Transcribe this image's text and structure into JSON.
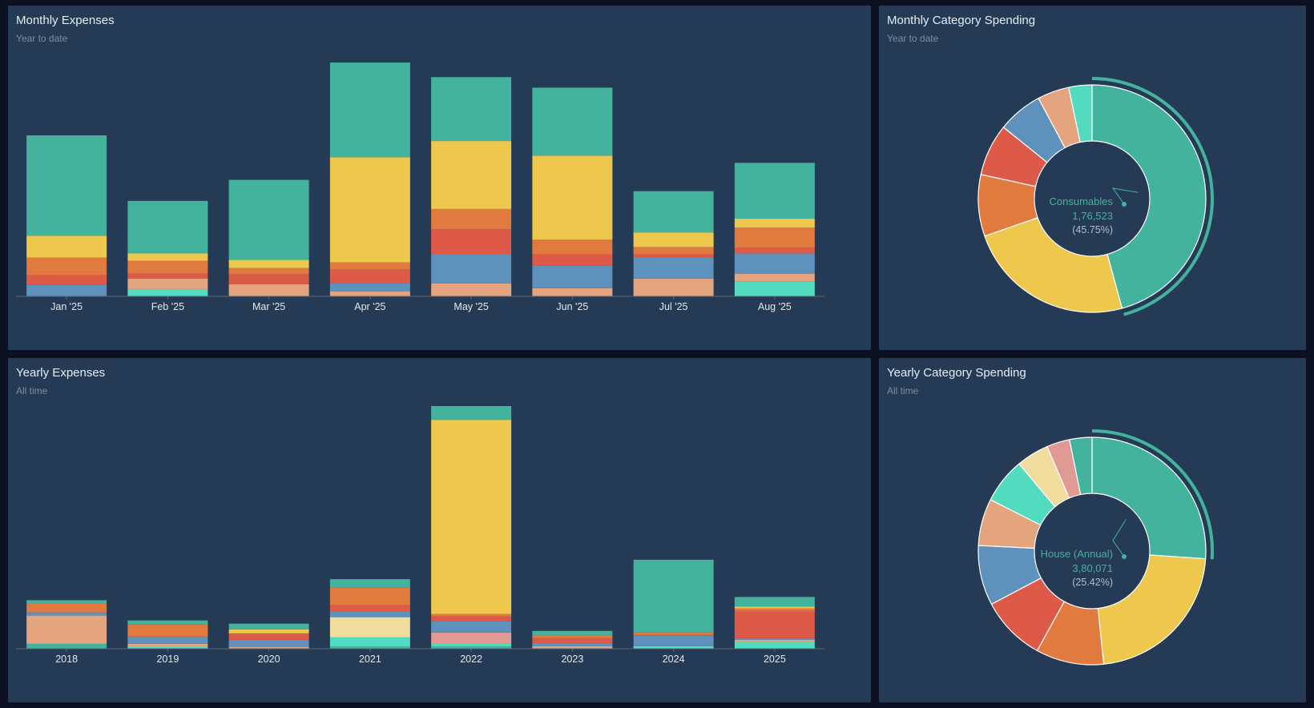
{
  "colors": {
    "background": "#0b1120",
    "panel": "#253a55",
    "axis": "#5b6b80",
    "palette": [
      "#44b39e",
      "#edc84d",
      "#e07a3f",
      "#de5a48",
      "#5f91bd",
      "#e4a47e",
      "#53dbc0",
      "#f0dc9c",
      "#e09a94"
    ]
  },
  "panels": {
    "monthly_expenses": {
      "title": "Monthly Expenses",
      "subtitle": "Year to date"
    },
    "monthly_category": {
      "title": "Monthly Category Spending",
      "subtitle": "Year to date"
    },
    "yearly_expenses": {
      "title": "Yearly Expenses",
      "subtitle": "All time"
    },
    "yearly_category": {
      "title": "Yearly Category Spending",
      "subtitle": "All time"
    }
  },
  "chart_data": [
    {
      "id": "monthly_expenses",
      "type": "bar",
      "stacked": true,
      "categories": [
        "Jan '25",
        "Feb '25",
        "Mar '25",
        "Apr '25",
        "May '25",
        "Jun '25",
        "Jul '25",
        "Aug '25"
      ],
      "segment_order": [
        "c6",
        "c5",
        "c4",
        "c3",
        "c2",
        "c1",
        "c0"
      ],
      "series": [
        {
          "key": "c0",
          "color": "#44b39e",
          "values": [
            124,
            65,
            99,
            117,
            79,
            84,
            51,
            69
          ]
        },
        {
          "key": "c1",
          "color": "#edc84d",
          "values": [
            27,
            9,
            10,
            130,
            84,
            104,
            18,
            11
          ]
        },
        {
          "key": "c2",
          "color": "#e07a3f",
          "values": [
            22,
            16,
            8,
            9,
            25,
            18,
            9,
            25
          ]
        },
        {
          "key": "c3",
          "color": "#de5a48",
          "values": [
            12,
            6,
            12,
            17,
            31,
            14,
            4,
            7
          ]
        },
        {
          "key": "c4",
          "color": "#5f91bd",
          "values": [
            14,
            0,
            0,
            10,
            36,
            28,
            26,
            25
          ]
        },
        {
          "key": "c5",
          "color": "#e4a47e",
          "values": [
            0,
            13,
            14,
            6,
            16,
            10,
            22,
            10
          ]
        },
        {
          "key": "c6",
          "color": "#53dbc0",
          "values": [
            0,
            9,
            1,
            0,
            0,
            0,
            0,
            18
          ]
        }
      ],
      "ylim": [
        0,
        300
      ],
      "xlabel": "",
      "ylabel": ""
    },
    {
      "id": "yearly_expenses",
      "type": "bar",
      "stacked": true,
      "categories": [
        "2018",
        "2019",
        "2020",
        "2021",
        "2022",
        "2023",
        "2024",
        "2025"
      ],
      "segment_order": [
        "c0",
        "c6",
        "c7",
        "c8",
        "c5",
        "c4",
        "c3",
        "c2",
        "c1",
        "c9"
      ],
      "series": [
        {
          "key": "c0",
          "color": "#44b39e",
          "values": [
            6,
            0,
            0,
            3,
            3,
            0,
            0,
            0
          ]
        },
        {
          "key": "c6",
          "color": "#53dbc0",
          "values": [
            0,
            3,
            0,
            11,
            3,
            0,
            3,
            8
          ]
        },
        {
          "key": "c7",
          "color": "#f0dc9c",
          "values": [
            0,
            0,
            0,
            25,
            0,
            0,
            0,
            0
          ]
        },
        {
          "key": "c8",
          "color": "#e09a94",
          "values": [
            0,
            0,
            0,
            0,
            14,
            0,
            0,
            0
          ]
        },
        {
          "key": "c5",
          "color": "#e4a47e",
          "values": [
            35,
            3,
            2,
            0,
            0,
            3,
            0,
            3
          ]
        },
        {
          "key": "c4",
          "color": "#5f91bd",
          "values": [
            4,
            9,
            9,
            7,
            14,
            4,
            13,
            2
          ]
        },
        {
          "key": "c3",
          "color": "#de5a48",
          "values": [
            0,
            0,
            8,
            8,
            6,
            6,
            1,
            34
          ]
        },
        {
          "key": "c2",
          "color": "#e07a3f",
          "values": [
            11,
            15,
            0,
            22,
            3,
            4,
            3,
            3
          ]
        },
        {
          "key": "c1",
          "color": "#edc84d",
          "values": [
            0,
            0,
            5,
            0,
            240,
            0,
            0,
            2
          ]
        },
        {
          "key": "c9",
          "color": "#44b39e",
          "values": [
            4,
            5,
            7,
            10,
            17,
            5,
            90,
            12
          ]
        }
      ],
      "ylim": [
        0,
        300
      ],
      "xlabel": "",
      "ylabel": ""
    },
    {
      "id": "monthly_category",
      "type": "pie",
      "donut": true,
      "values": [
        45.75,
        23.9,
        8.75,
        7.4,
        6.4,
        4.5,
        3.3
      ],
      "colors": [
        "#44b39e",
        "#edc84d",
        "#e07a3f",
        "#de5a48",
        "#5f91bd",
        "#e4a47e",
        "#53dbc0"
      ],
      "highlight": {
        "index": 0,
        "name": "Consumables",
        "value": "1,76,523",
        "percent": "(45.75%)"
      }
    },
    {
      "id": "yearly_category",
      "type": "pie",
      "donut": true,
      "values": [
        25.42,
        21.7,
        9.4,
        9.0,
        8.3,
        6.5,
        6.3,
        4.5,
        3.2,
        3.1
      ],
      "colors": [
        "#44b39e",
        "#edc84d",
        "#e07a3f",
        "#de5a48",
        "#5f91bd",
        "#e4a47e",
        "#53dbc0",
        "#f0dc9c",
        "#e09a94",
        "#44b39e"
      ],
      "highlight": {
        "index": 0,
        "name": "House (Annual)",
        "value": "3,80,071",
        "percent": "(25.42%)"
      }
    }
  ]
}
